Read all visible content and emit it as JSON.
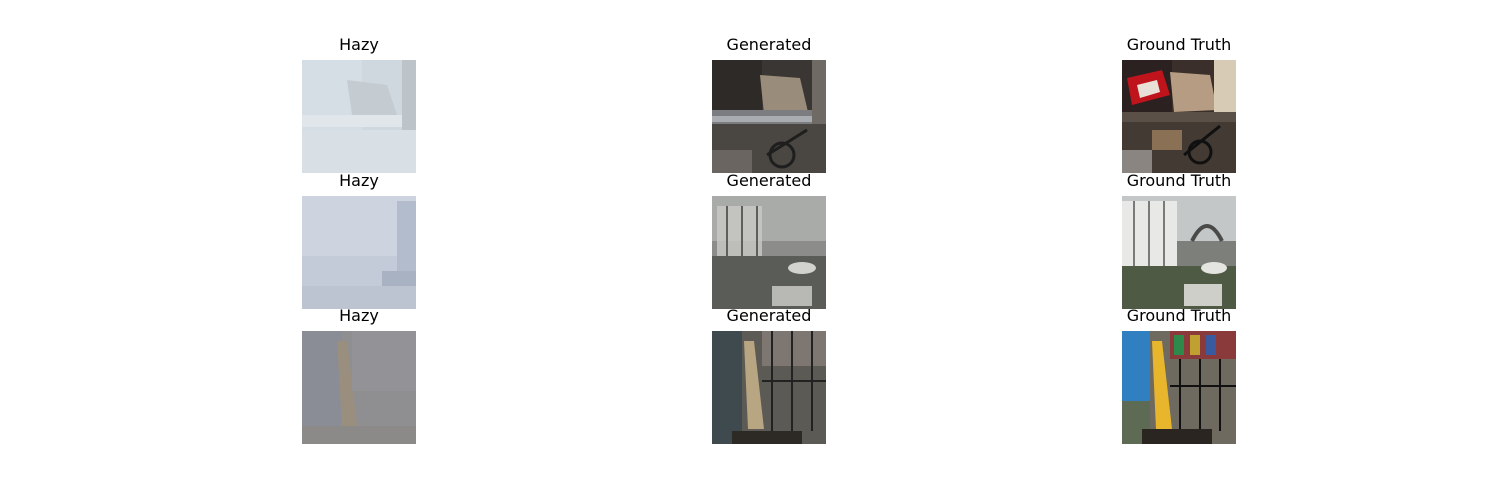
{
  "figure": {
    "rows": [
      {
        "scene": "cluttered-room-bicycle",
        "panels": [
          {
            "title": "Hazy",
            "kind": "hazy"
          },
          {
            "title": "Generated",
            "kind": "generated"
          },
          {
            "title": "Ground Truth",
            "kind": "truth"
          }
        ]
      },
      {
        "scene": "white-gazebo-garden",
        "panels": [
          {
            "title": "Hazy",
            "kind": "hazy"
          },
          {
            "title": "Generated",
            "kind": "generated"
          },
          {
            "title": "Ground Truth",
            "kind": "truth"
          }
        ]
      },
      {
        "scene": "playground-yellow-slide",
        "panels": [
          {
            "title": "Hazy",
            "kind": "hazy"
          },
          {
            "title": "Generated",
            "kind": "generated"
          },
          {
            "title": "Ground Truth",
            "kind": "truth"
          }
        ]
      }
    ],
    "colors": {
      "haze_light": "#cfd6de",
      "haze_grey": "#8f8f92",
      "slide_yellow": "#e8b62c",
      "wall_blue": "#2f7fc1",
      "toy_red": "#c0141c"
    }
  }
}
